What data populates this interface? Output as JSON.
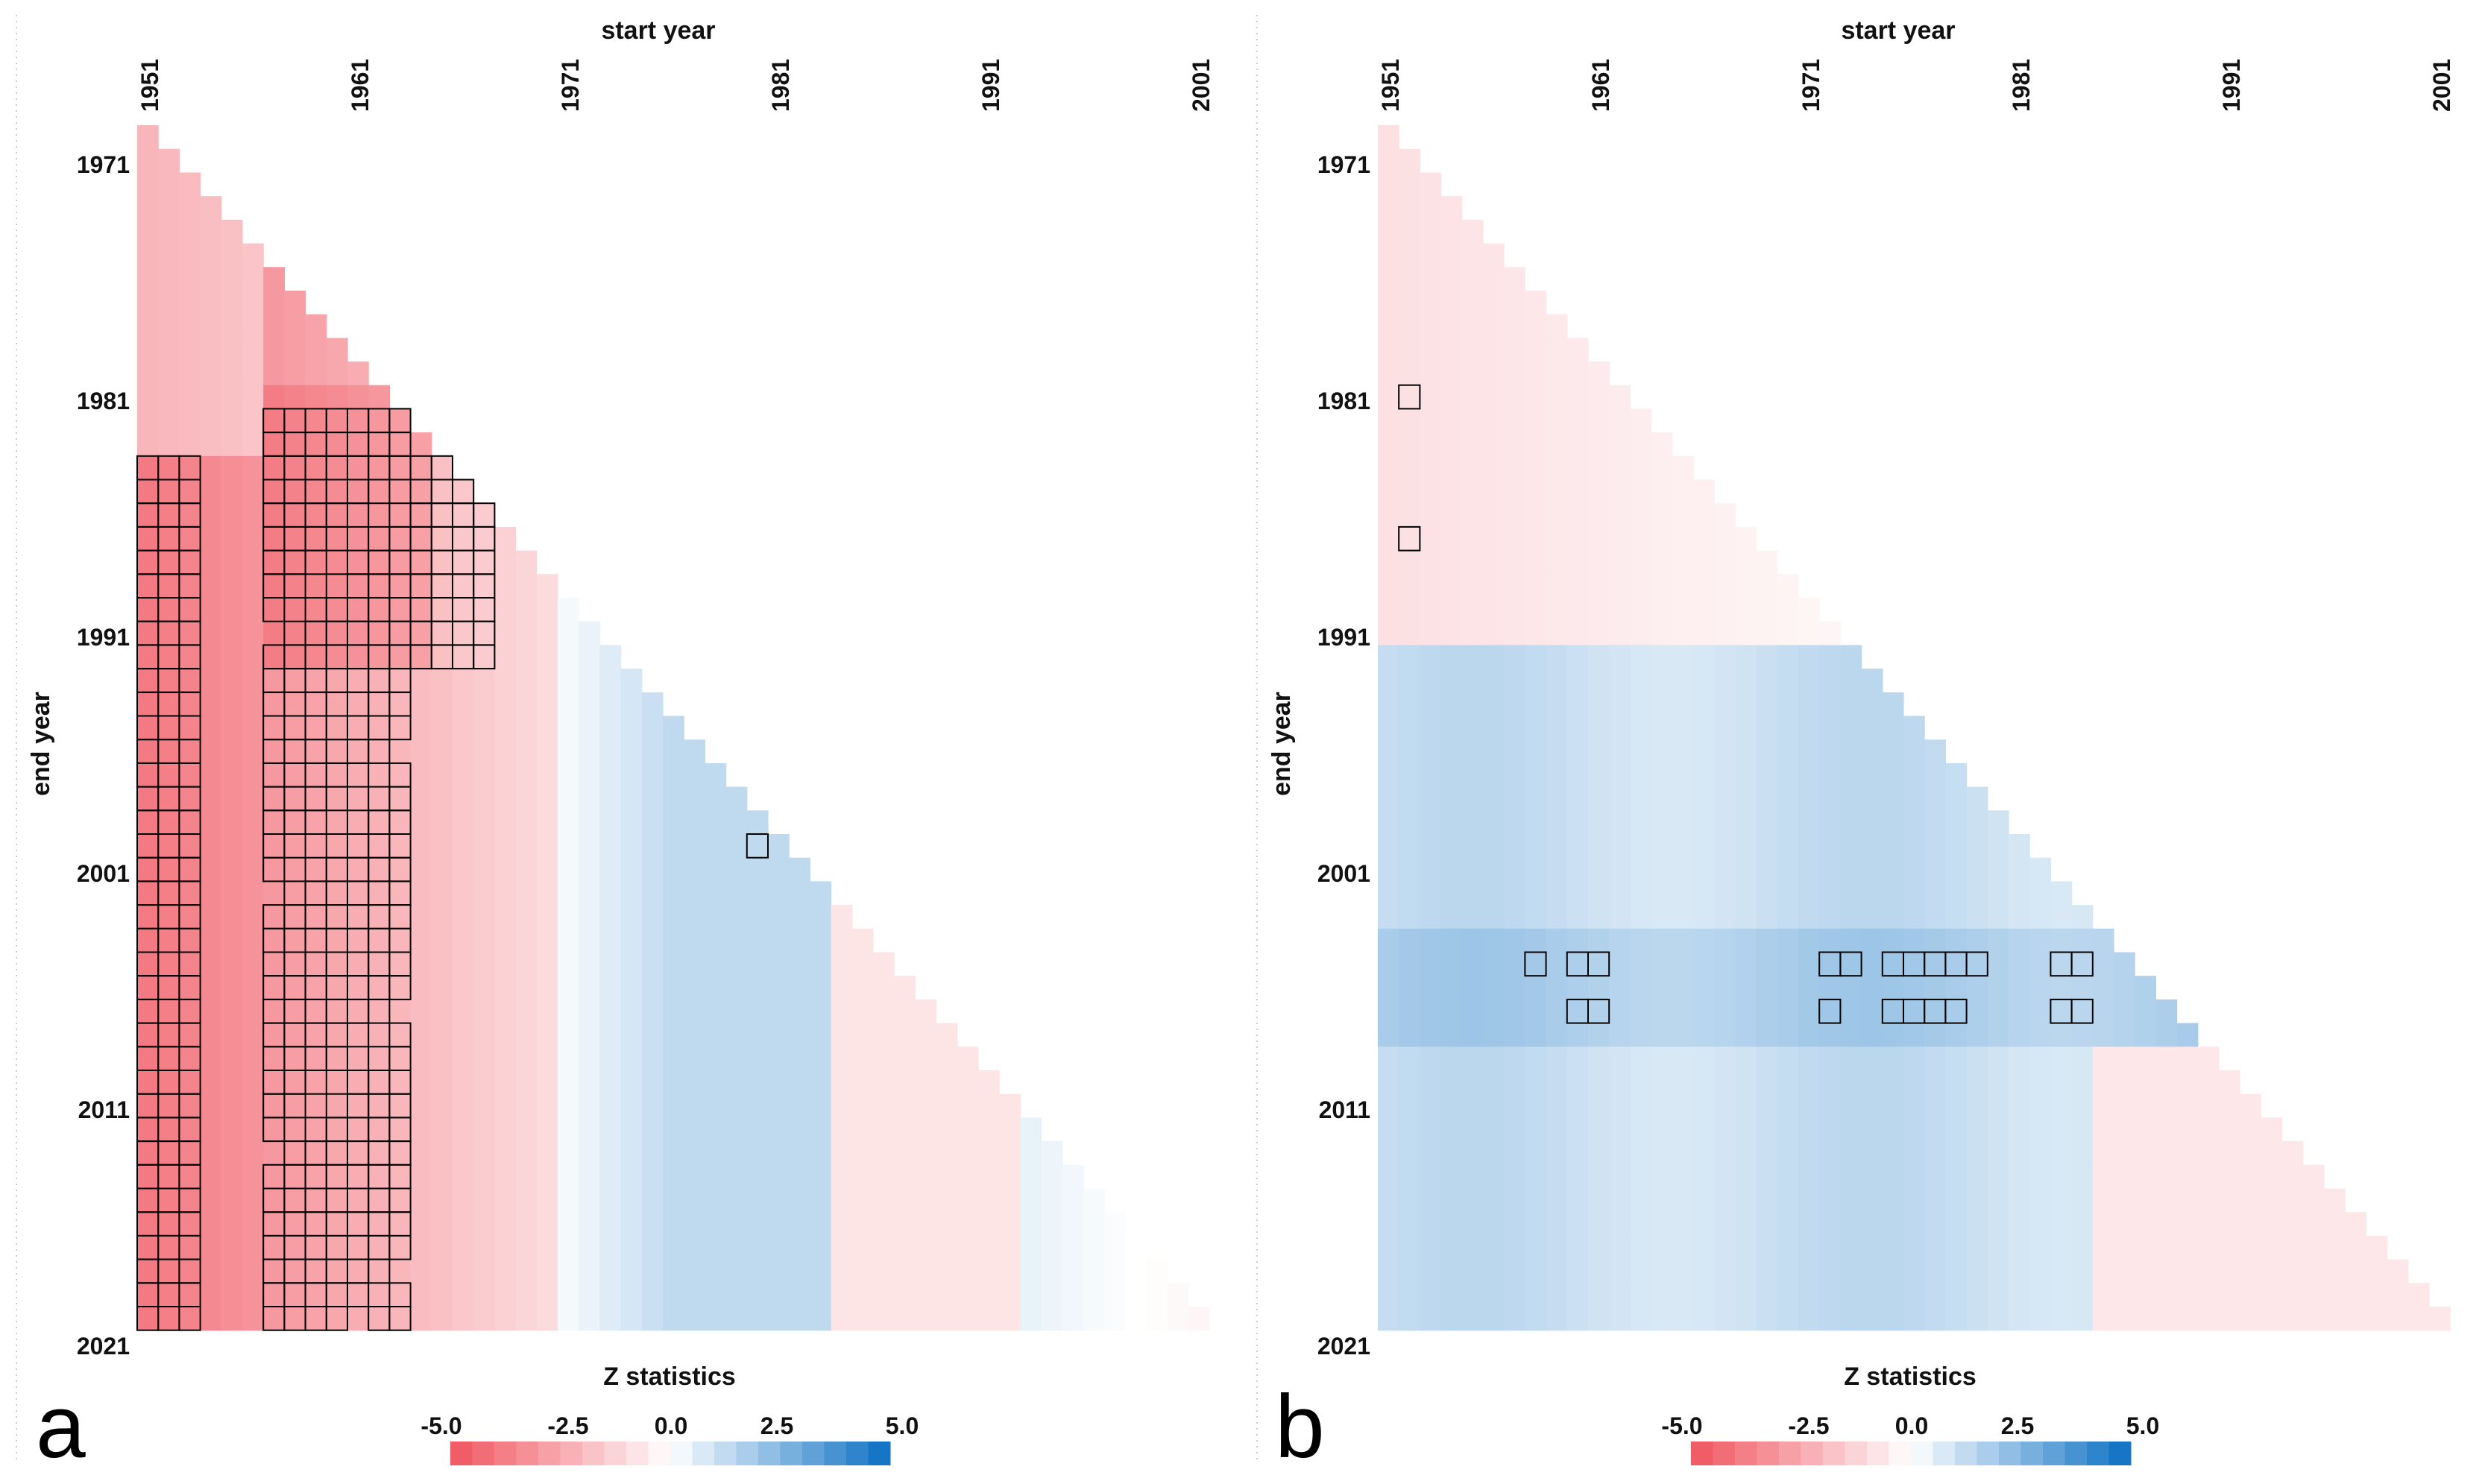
{
  "chart_data": [
    {
      "type": "heatmap",
      "panel_label": "a",
      "xlabel": "start year",
      "ylabel": "end year",
      "colorbar_title": "Z statistics",
      "x_ticks": [
        "1951",
        "1961",
        "1971",
        "1981",
        "1991",
        "2001"
      ],
      "y_ticks": [
        "1971",
        "1981",
        "1991",
        "2001",
        "2011",
        "2021"
      ],
      "colorbar_ticks": [
        "-5.0",
        "-2.5",
        "0.0",
        "2.5",
        "5.0"
      ],
      "colorbar_range": [
        -5,
        5
      ],
      "start_year_range": [
        1951,
        2001
      ],
      "end_year_range": [
        1971,
        2021
      ],
      "min_window_years": 20,
      "colors": {
        "negative": "#f0545f",
        "positive": "#0a6fc2",
        "neutral": "#ffffff",
        "significance_outline": "#000000"
      },
      "significance": "outlined cells are significant"
    },
    {
      "type": "heatmap",
      "panel_label": "b",
      "xlabel": "start year",
      "ylabel": "end year",
      "colorbar_title": "Z statistics",
      "x_ticks": [
        "1951",
        "1961",
        "1971",
        "1981",
        "1991",
        "2001"
      ],
      "y_ticks": [
        "1971",
        "1981",
        "1991",
        "2001",
        "2011",
        "2021"
      ],
      "colorbar_ticks": [
        "-5.0",
        "-2.5",
        "0.0",
        "2.5",
        "5.0"
      ],
      "colorbar_range": [
        -5,
        5
      ],
      "start_year_range": [
        1951,
        2001
      ],
      "end_year_range": [
        1971,
        2021
      ],
      "min_window_years": 20,
      "colors": {
        "negative": "#f0545f",
        "positive": "#0a6fc2",
        "neutral": "#ffffff",
        "significance_outline": "#000000"
      },
      "significance": "outlined cells are significant"
    }
  ]
}
